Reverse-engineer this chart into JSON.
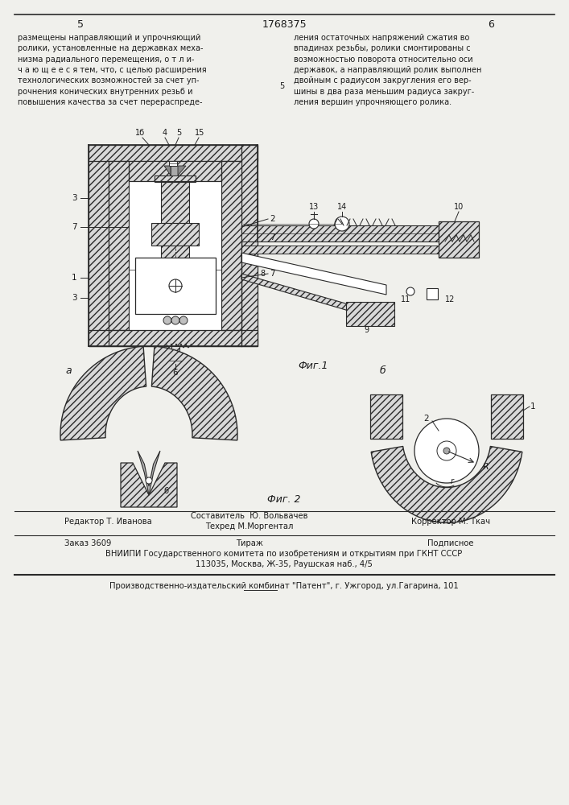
{
  "page_number_left": "5",
  "page_number_center": "1768375",
  "page_number_right": "6",
  "text_left": "размещены направляющий и упрочняющий\nролики, установленные на державках меха-\nнизма радиального перемещения, о т л и-\nч а ю щ е е с я тем, что, с целью расширения\nтехнологических возможностей за счет уп-\nрочнения конических внутренних резьб и\nповышения качества за счет перераспреде-",
  "text_right": "ления остаточных напряжений сжатия во\nвпадинах резьбы, ролики смонтированы с\nвозможностью поворота относительно оси\nдержавок, а направляющий ролик выполнен\nдвойным с радиусом закругления его вер-\nшины в два раза меньшим радиуса закруг-\nления вершин упрочняющего ролика.",
  "text_number_5": "5",
  "fig1_label": "Фиг.1",
  "fig2_label": "Фиг. 2",
  "fig2a_label": "а",
  "fig2b_label": "б",
  "editor_label": "Редактор Т. Иванова",
  "composer_label": "Составитель  Ю. Вольвачев",
  "techred_label": "Техред М.Моргентал",
  "corrector_label": "Корректор М. Ткач",
  "order_label": "Заказ 3609",
  "tirazh_label": "Тираж",
  "podpisnoe_label": "Подписное",
  "vniiipi_line1": "ВНИИПИ Государственного комитета по изобретениям и открытиям при ГКНТ СССР",
  "vniiipi_line2": "113035, Москва, Ж-35, Раушская наб., 4/5",
  "factory_line": "Производственно-издательский комбинат \"Патент\", г. Ужгород, ул.Гагарина, 101",
  "bg_color": "#f0f0ec",
  "text_color": "#1a1a1a",
  "line_color": "#2a2a2a",
  "hatch_face": "#d8d8d8"
}
